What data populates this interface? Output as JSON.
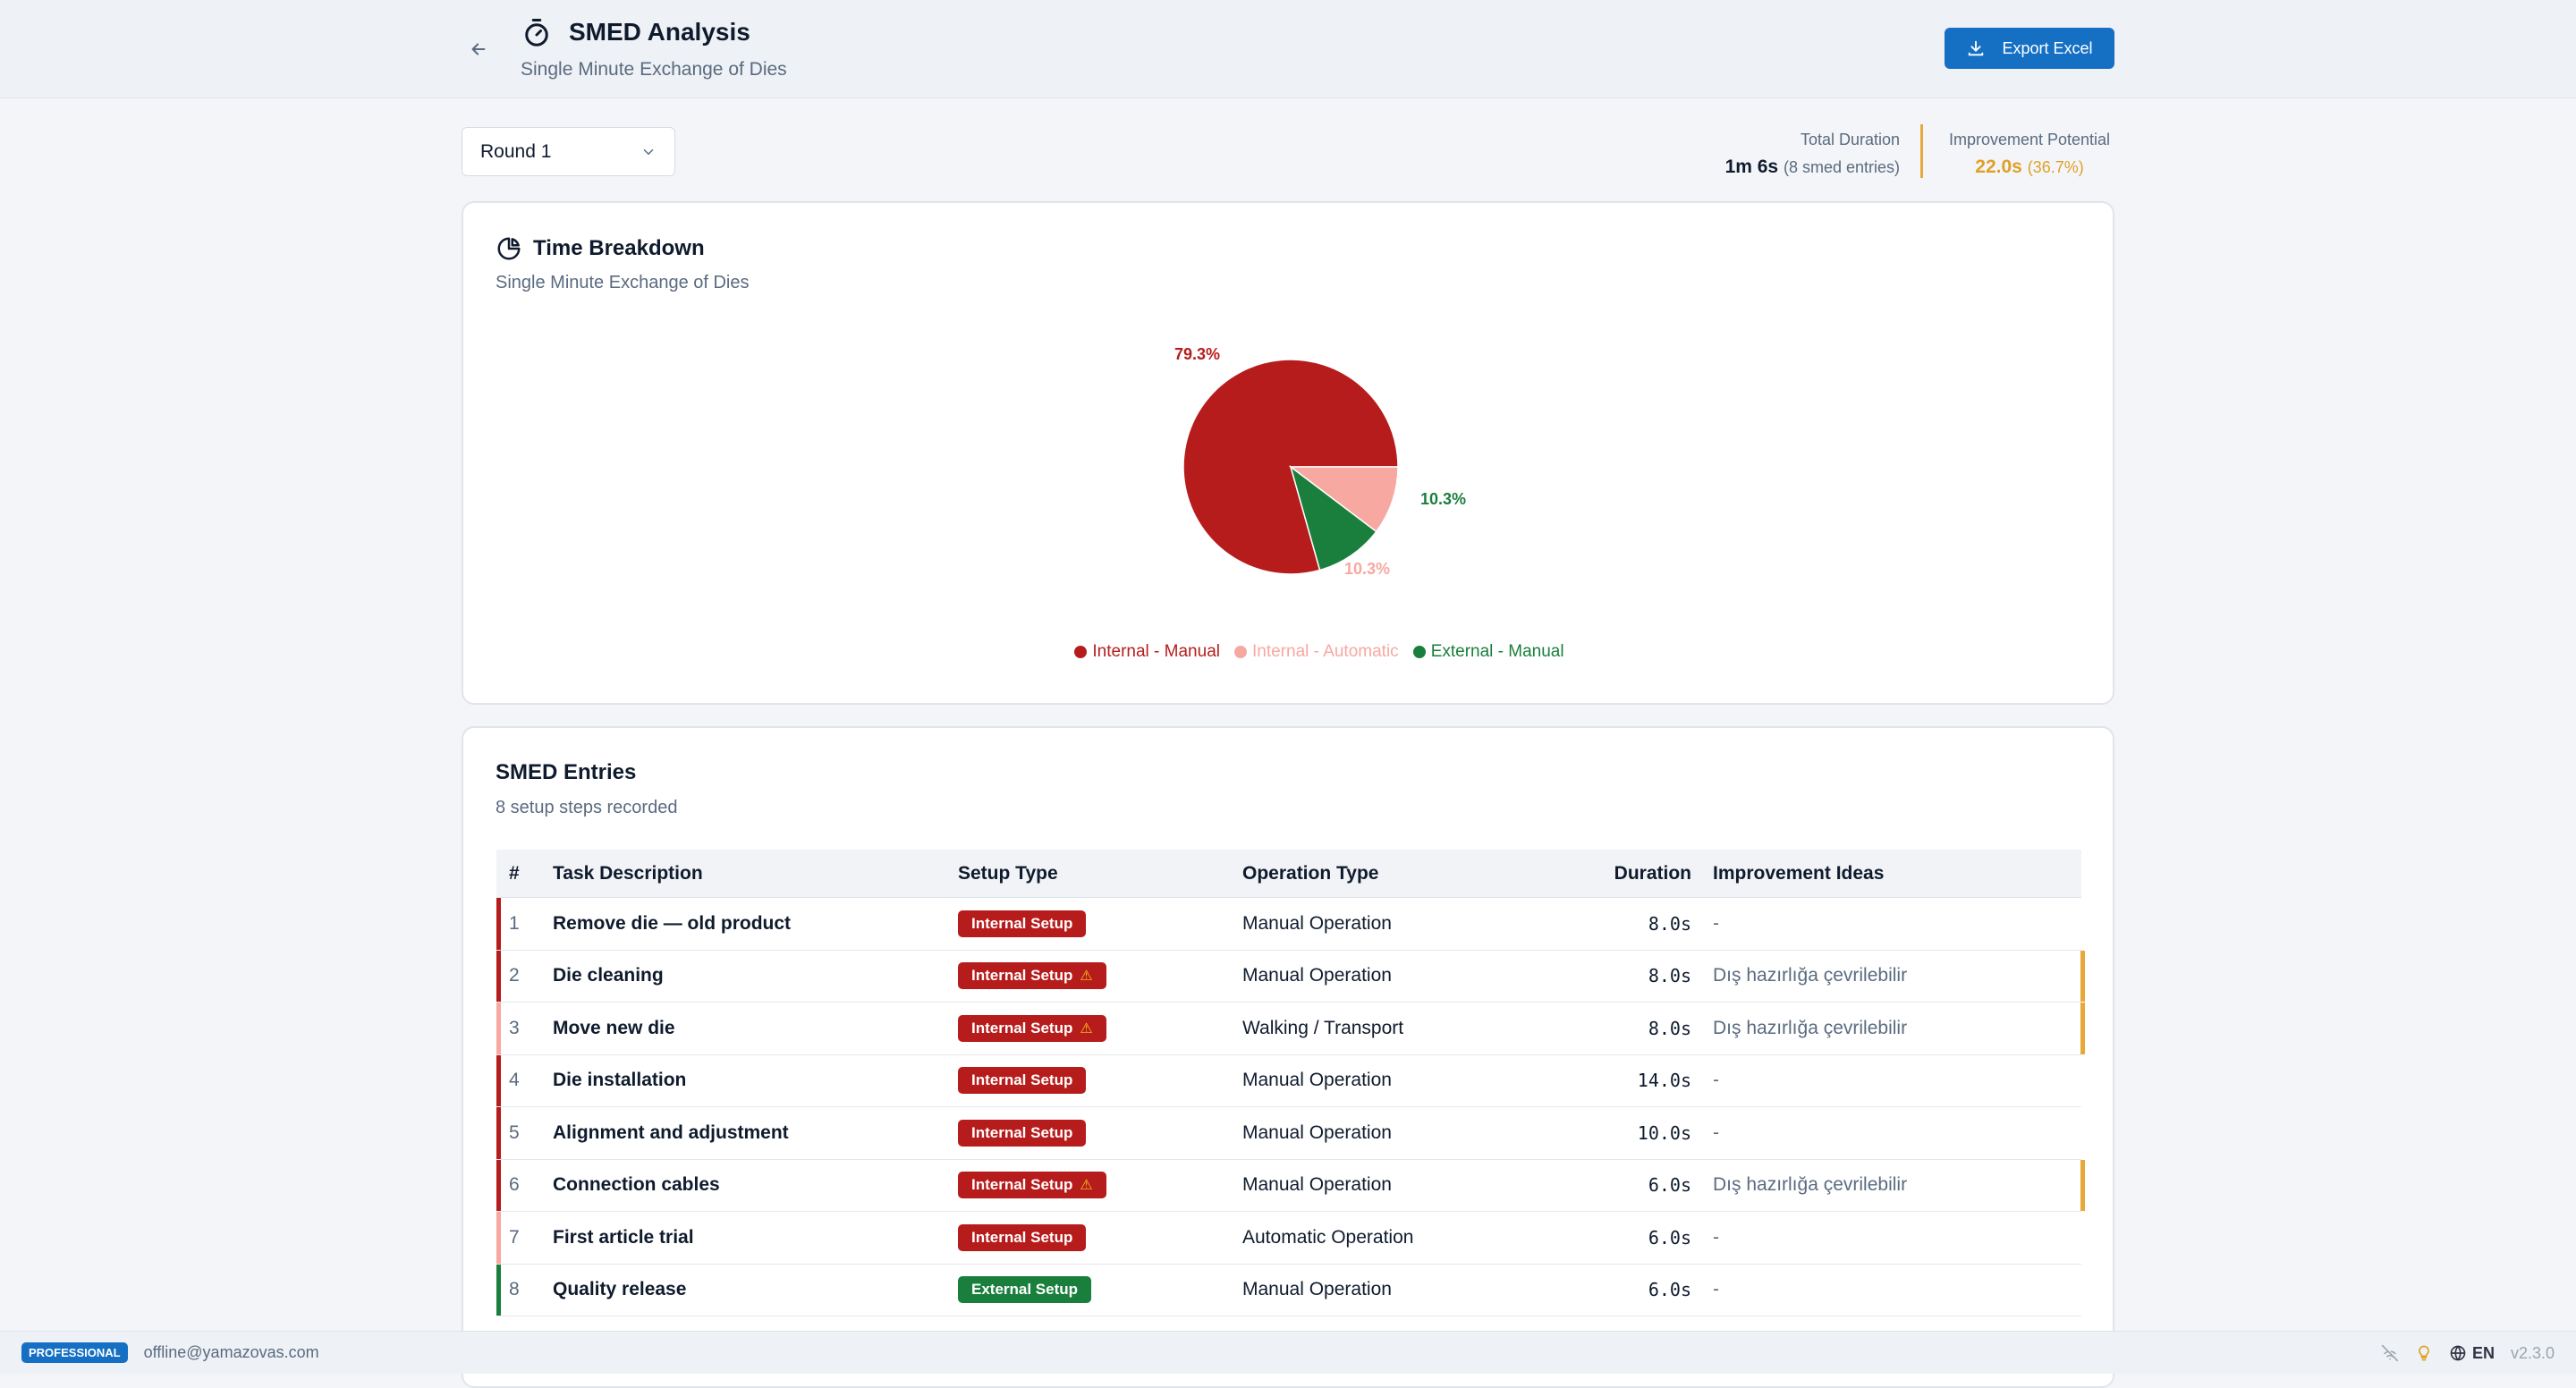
{
  "header": {
    "title": "SMED Analysis",
    "subtitle": "Single Minute Exchange of Dies",
    "export_label": "Export Excel"
  },
  "controls": {
    "round_selected": "Round 1",
    "total_duration_label": "Total Duration",
    "total_duration_value": "1m 6s",
    "total_duration_sub": "(8 smed entries)",
    "improvement_label": "Improvement Potential",
    "improvement_value": "22.0s",
    "improvement_sub": "(36.7%)"
  },
  "chart_card": {
    "title": "Time Breakdown",
    "subtitle": "Single Minute Exchange of Dies"
  },
  "chart_data": {
    "type": "pie",
    "slices": [
      {
        "label": "Internal - Manual",
        "value": 79.3,
        "display": "79.3%",
        "color": "#b71c1c"
      },
      {
        "label": "Internal - Automatic",
        "value": 10.3,
        "display": "10.3%",
        "color": "#f7a8a1"
      },
      {
        "label": "External - Manual",
        "value": 10.3,
        "display": "10.3%",
        "color": "#1a7f3c"
      }
    ],
    "legend_position": "bottom"
  },
  "entries_card": {
    "title": "SMED Entries",
    "subtitle": "8 setup steps recorded",
    "columns": [
      "#",
      "Task Description",
      "Setup Type",
      "Operation Type",
      "Duration",
      "Improvement Ideas"
    ],
    "rows": [
      {
        "num": "1",
        "task": "Remove die — old product",
        "setup": "Internal Setup",
        "op": "Manual Operation",
        "dur": "8.0s",
        "idea": "-"
      },
      {
        "num": "2",
        "task": "Die cleaning",
        "setup": "Internal Setup",
        "op": "Manual Operation",
        "dur": "8.0s",
        "idea": "Dış hazırlığa çevrilebilir"
      },
      {
        "num": "3",
        "task": "Move new die",
        "setup": "Internal Setup",
        "op": "Walking / Transport",
        "dur": "8.0s",
        "idea": "Dış hazırlığa çevrilebilir"
      },
      {
        "num": "4",
        "task": "Die installation",
        "setup": "Internal Setup",
        "op": "Manual Operation",
        "dur": "14.0s",
        "idea": "-"
      },
      {
        "num": "5",
        "task": "Alignment and adjustment",
        "setup": "Internal Setup",
        "op": "Manual Operation",
        "dur": "10.0s",
        "idea": "-"
      },
      {
        "num": "6",
        "task": "Connection cables",
        "setup": "Internal Setup",
        "op": "Manual Operation",
        "dur": "6.0s",
        "idea": "Dış hazırlığa çevrilebilir"
      },
      {
        "num": "7",
        "task": "First article trial",
        "setup": "Internal Setup",
        "op": "Automatic Operation",
        "dur": "6.0s",
        "idea": "-"
      },
      {
        "num": "8",
        "task": "Quality release",
        "setup": "External Setup",
        "op": "Manual Operation",
        "dur": "6.0s",
        "idea": "-"
      }
    ]
  },
  "footer": {
    "plan": "PROFESSIONAL",
    "email": "offline@yamazovas.com",
    "lang": "EN",
    "version": "v2.3.0"
  }
}
